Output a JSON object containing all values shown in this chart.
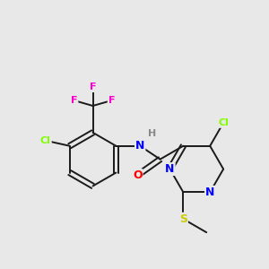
{
  "background_color": "#e8e8e8",
  "bond_color": "#1a1a1a",
  "atom_colors": {
    "F": "#ff00cc",
    "Cl": "#7fff00",
    "N": "#0000ff",
    "O": "#ff0000",
    "S": "#cccc00",
    "H": "#888888",
    "C": "#1a1a1a"
  },
  "figsize": [
    3.0,
    3.0
  ],
  "dpi": 100
}
